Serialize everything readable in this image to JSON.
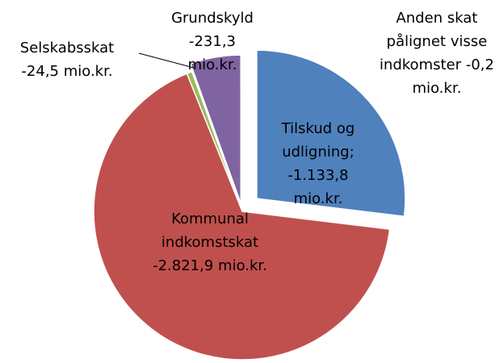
{
  "chart_data": {
    "type": "pie",
    "categories": [
      "Tilskud og udligning;",
      "Kommunal indkomstskat",
      "Selskabsskat",
      "Grundskyld",
      "Anden skat pålignet visse indkomster"
    ],
    "values": [
      -1133.8,
      -2821.9,
      -24.5,
      -231.3,
      -0.2
    ],
    "value_labels": [
      "-1.133,8 mio.kr.",
      "-2.821,9 mio.kr.",
      "-24,5 mio.kr.",
      "-231,3 mio.kr.",
      "-0,2 mio.kr."
    ],
    "colors": [
      "#4f81bd",
      "#c0504d",
      "#9bbb59",
      "#8064a2",
      "#4bacc6"
    ]
  }
}
